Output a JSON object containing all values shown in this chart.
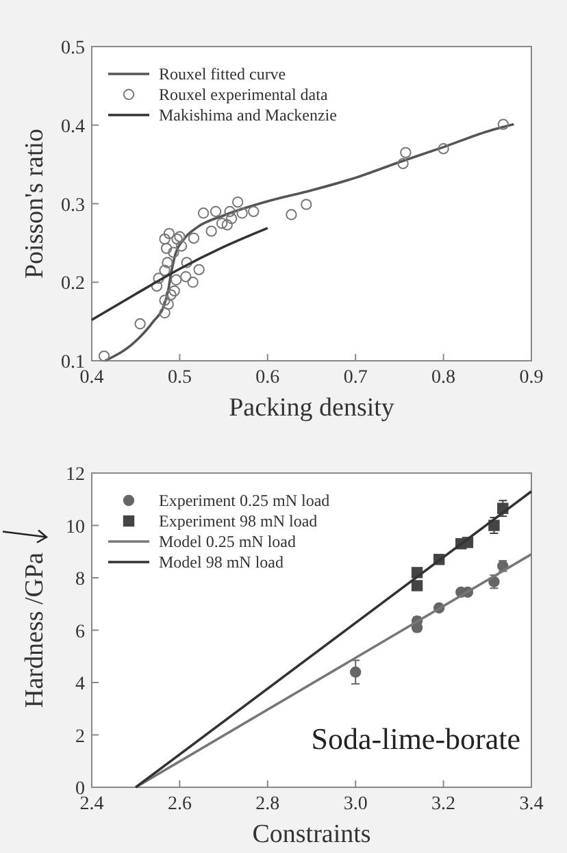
{
  "chart_data": [
    {
      "type": "scatter",
      "xlabel": "Packing density",
      "ylabel": "Poisson's ratio",
      "xlim": [
        0.4,
        0.9
      ],
      "ylim": [
        0.1,
        0.5
      ],
      "xticks": [
        0.4,
        0.5,
        0.6,
        0.7,
        0.8,
        0.9
      ],
      "yticks": [
        0.1,
        0.2,
        0.3,
        0.4,
        0.5
      ],
      "legend": "top left",
      "grid": false,
      "series": [
        {
          "name": "Rouxel fitted curve",
          "type": "line",
          "color": "#555555",
          "x": [
            0.415,
            0.45,
            0.47,
            0.482,
            0.487,
            0.49,
            0.495,
            0.505,
            0.52,
            0.55,
            0.6,
            0.65,
            0.7,
            0.75,
            0.8,
            0.85,
            0.88
          ],
          "values": [
            0.1,
            0.125,
            0.15,
            0.17,
            0.19,
            0.21,
            0.235,
            0.255,
            0.27,
            0.285,
            0.303,
            0.317,
            0.333,
            0.353,
            0.372,
            0.392,
            0.401
          ]
        },
        {
          "name": "Rouxel experimental data",
          "marker": "circle",
          "color": "#777777",
          "x": [
            0.414,
            0.455,
            0.474,
            0.476,
            0.483,
            0.485,
            0.488,
            0.483,
            0.486,
            0.483,
            0.483,
            0.487,
            0.49,
            0.494,
            0.496,
            0.493,
            0.497,
            0.5,
            0.502,
            0.507,
            0.508,
            0.515,
            0.522,
            0.516,
            0.527,
            0.536,
            0.541,
            0.548,
            0.554,
            0.557,
            0.566,
            0.571,
            0.584,
            0.559,
            0.627,
            0.644,
            0.754,
            0.757,
            0.8,
            0.868
          ],
          "values": [
            0.106,
            0.147,
            0.195,
            0.205,
            0.255,
            0.243,
            0.262,
            0.215,
            0.225,
            0.177,
            0.161,
            0.172,
            0.184,
            0.189,
            0.203,
            0.238,
            0.255,
            0.258,
            0.246,
            0.207,
            0.225,
            0.2,
            0.216,
            0.256,
            0.288,
            0.265,
            0.29,
            0.275,
            0.273,
            0.29,
            0.302,
            0.288,
            0.29,
            0.281,
            0.286,
            0.299,
            0.351,
            0.365,
            0.37,
            0.401
          ]
        },
        {
          "name": "Makishima and Mackenzie",
          "type": "line",
          "color": "#333333",
          "x": [
            0.4,
            0.45,
            0.5,
            0.55,
            0.6
          ],
          "values": [
            0.152,
            0.185,
            0.217,
            0.245,
            0.269
          ]
        }
      ]
    },
    {
      "type": "scatter",
      "xlabel": "Constraints",
      "ylabel": "Hardness /GPa",
      "xlim": [
        2.4,
        3.4
      ],
      "ylim": [
        0,
        12
      ],
      "xticks": [
        2.4,
        2.6,
        2.8,
        {
          "value": 3,
          "label": "3.0"
        },
        3.2,
        3.4
      ],
      "yticks": [
        0,
        2,
        4,
        6,
        8,
        10,
        12
      ],
      "legend": "top left",
      "grid": false,
      "annotations": [
        "Soda-lime-borate"
      ],
      "series": [
        {
          "name": "Experiment 0.25 mN load",
          "marker": "circle",
          "color": "#666666",
          "x": [
            3.0,
            3.14,
            3.14,
            3.19,
            3.24,
            3.255,
            3.315,
            3.335
          ],
          "values": [
            4.4,
            6.35,
            6.1,
            6.85,
            7.45,
            7.45,
            7.85,
            8.45
          ],
          "errors": [
            0.45,
            0.15,
            0.15,
            null,
            null,
            null,
            0.25,
            0.2
          ]
        },
        {
          "name": "Experiment 98 mN load",
          "marker": "square",
          "color": "#444444",
          "x": [
            3.14,
            3.14,
            3.19,
            3.24,
            3.255,
            3.315,
            3.335
          ],
          "values": [
            8.2,
            7.7,
            8.7,
            9.3,
            9.35,
            10.0,
            10.65
          ],
          "errors": [
            0.15,
            0.15,
            null,
            null,
            null,
            0.3,
            0.3
          ]
        },
        {
          "name": "Model 0.25 mN load",
          "type": "line",
          "color": "#777777",
          "x": [
            2.5,
            3.4
          ],
          "values": [
            0,
            8.9
          ]
        },
        {
          "name": "Model 98 mN load",
          "type": "line",
          "color": "#333333",
          "x": [
            2.5,
            3.4
          ],
          "values": [
            0,
            11.3
          ]
        }
      ]
    }
  ]
}
